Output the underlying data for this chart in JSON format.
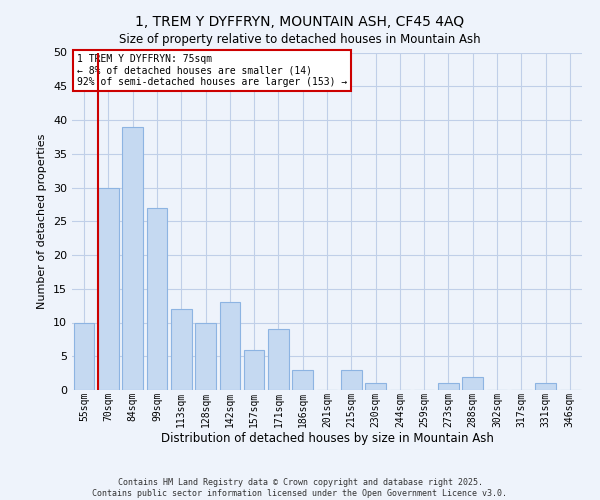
{
  "title": "1, TREM Y DYFFRYN, MOUNTAIN ASH, CF45 4AQ",
  "subtitle": "Size of property relative to detached houses in Mountain Ash",
  "xlabel": "Distribution of detached houses by size in Mountain Ash",
  "ylabel": "Number of detached properties",
  "bar_labels": [
    "55sqm",
    "70sqm",
    "84sqm",
    "99sqm",
    "113sqm",
    "128sqm",
    "142sqm",
    "157sqm",
    "171sqm",
    "186sqm",
    "201sqm",
    "215sqm",
    "230sqm",
    "244sqm",
    "259sqm",
    "273sqm",
    "288sqm",
    "302sqm",
    "317sqm",
    "331sqm",
    "346sqm"
  ],
  "bar_values": [
    10,
    30,
    39,
    27,
    12,
    10,
    13,
    6,
    9,
    3,
    0,
    3,
    1,
    0,
    0,
    1,
    2,
    0,
    0,
    1,
    0
  ],
  "bar_color": "#c5d9f1",
  "bar_edge_color": "#8db4e2",
  "grid_color": "#c0cfe8",
  "bg_color": "#eef3fb",
  "vline_color": "#cc0000",
  "annotation_title": "1 TREM Y DYFFRYN: 75sqm",
  "annotation_line1": "← 8% of detached houses are smaller (14)",
  "annotation_line2": "92% of semi-detached houses are larger (153) →",
  "annotation_box_color": "#ffffff",
  "annotation_border_color": "#cc0000",
  "ylim": [
    0,
    50
  ],
  "yticks": [
    0,
    5,
    10,
    15,
    20,
    25,
    30,
    35,
    40,
    45,
    50
  ],
  "footer_line1": "Contains HM Land Registry data © Crown copyright and database right 2025.",
  "footer_line2": "Contains public sector information licensed under the Open Government Licence v3.0."
}
